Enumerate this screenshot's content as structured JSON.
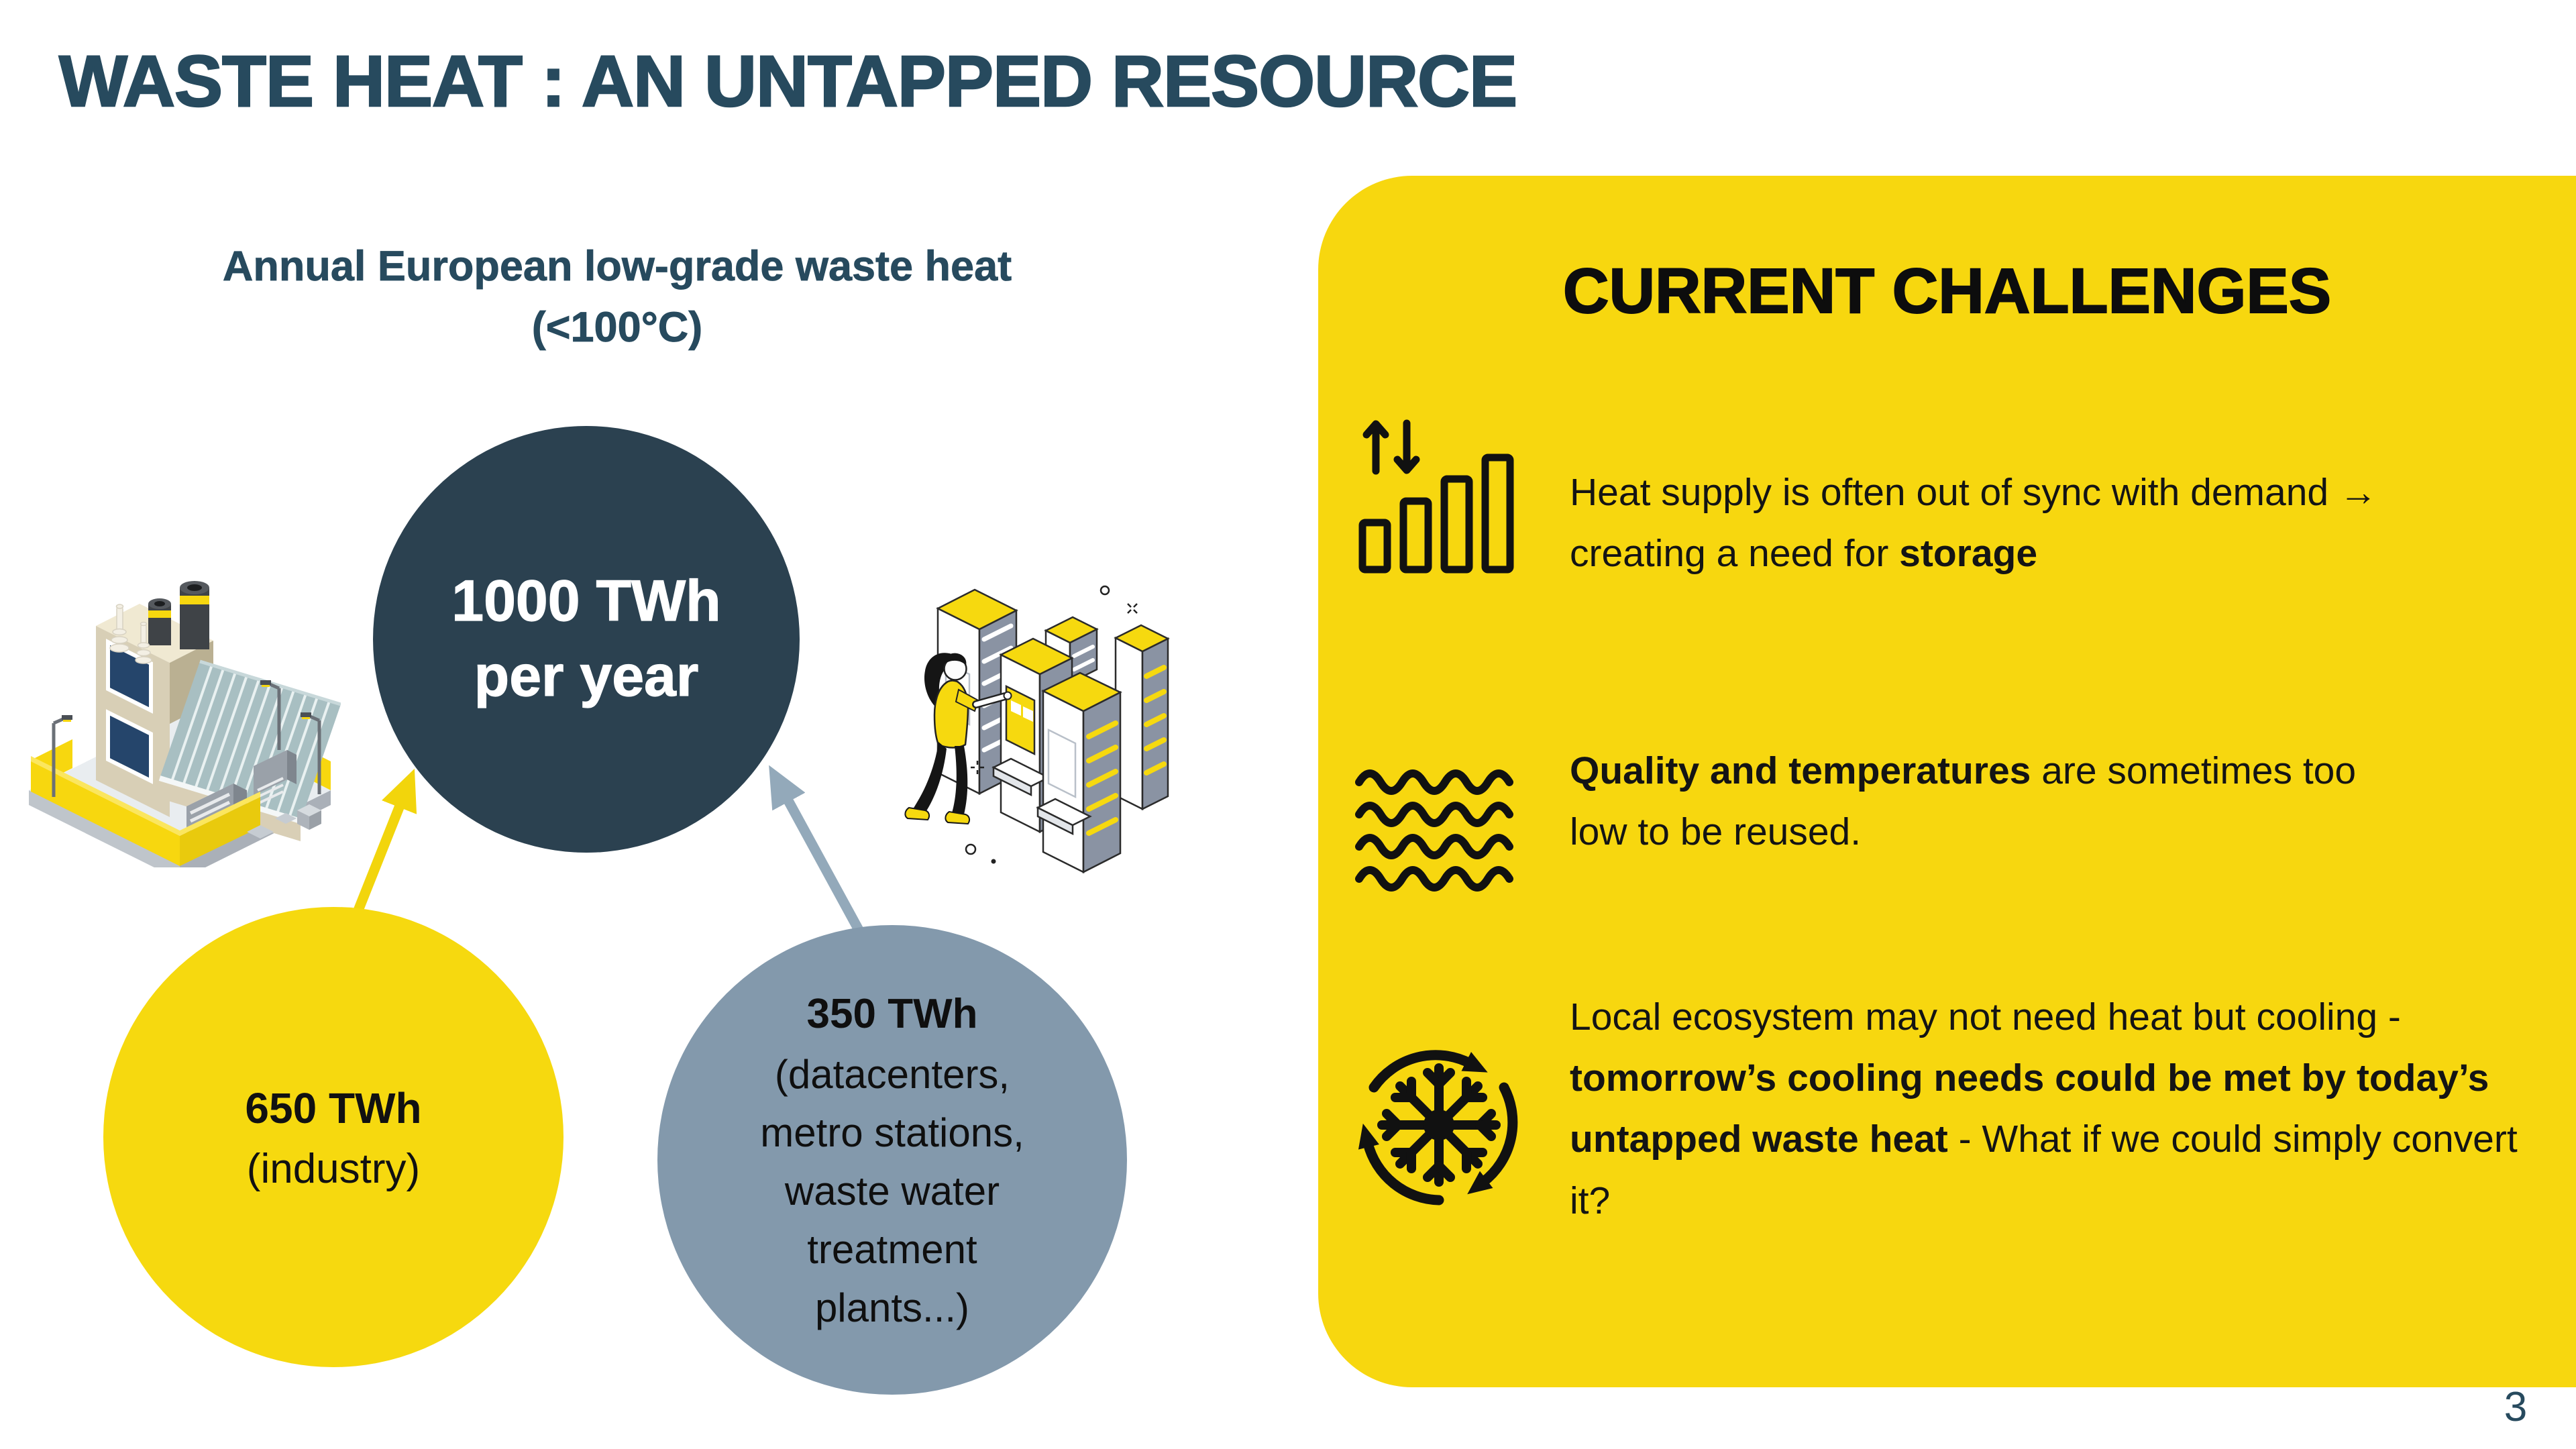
{
  "slide": {
    "title": "WASTE HEAT : AN UNTAPPED RESOURCE",
    "page_number": "3",
    "colors": {
      "background": "#ffffff",
      "title_dark_teal": "#274a5e",
      "bubble_dark": "#2b4150",
      "bubble_yellow": "#f6d90f",
      "bubble_gray_blue": "#8399ac",
      "panel_yellow": "#f7d70f",
      "arrow_yellow": "#f2d50c",
      "arrow_gray": "#93a9ba",
      "text_black": "#141414"
    }
  },
  "waste_heat_diagram": {
    "heading": {
      "line1": "Annual European low-grade waste heat",
      "line2": "(<100°C)"
    },
    "total_bubble": {
      "value": "1000 TWh",
      "caption": "per year"
    },
    "industry_bubble": {
      "value": "650 TWh",
      "caption": "(industry)"
    },
    "other_bubble": {
      "value": "350 TWh",
      "lines": [
        "(datacenters,",
        "metro stations,",
        "waste water",
        "treatment",
        "plants...)"
      ]
    },
    "illustrations": {
      "left": "factory-illustration",
      "right": "datacenter-illustration"
    }
  },
  "challenges_panel": {
    "title": "CURRENT CHALLENGES",
    "items": [
      {
        "icon": "supply-demand-sync-icon",
        "segments": [
          {
            "t": "Heat supply is often out of sync with demand → creating a need for ",
            "b": false
          },
          {
            "t": "storage",
            "b": true
          }
        ]
      },
      {
        "icon": "heat-waves-icon",
        "segments": [
          {
            "t": "Quality and temperatures",
            "b": true
          },
          {
            "t": " are sometimes too low to be reused.",
            "b": false
          }
        ]
      },
      {
        "icon": "snowflake-recycle-icon",
        "segments": [
          {
            "t": "Local ecosystem may not need heat but cooling - ",
            "b": false
          },
          {
            "t": "tomorrow’s cooling needs could be met by today’s untapped waste heat",
            "b": true
          },
          {
            "t": " - What if we could simply convert it?",
            "b": false
          }
        ]
      }
    ]
  }
}
